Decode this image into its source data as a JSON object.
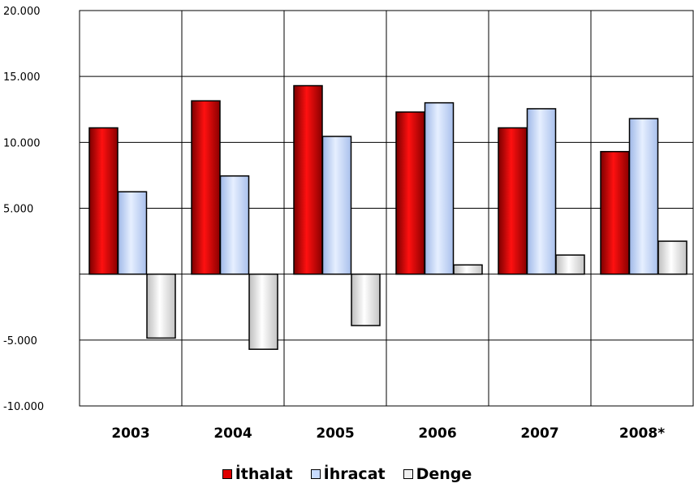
{
  "chart_data": {
    "type": "bar",
    "categories": [
      "2003",
      "2004",
      "2005",
      "2006",
      "2007",
      "2008*"
    ],
    "series": [
      {
        "name": "İthalat",
        "values": [
          11100,
          13150,
          14300,
          12300,
          11100,
          9300
        ],
        "color": "#e00000"
      },
      {
        "name": "İhracat",
        "values": [
          6250,
          7450,
          10450,
          13000,
          12550,
          11800
        ],
        "color": "#c8dcff"
      },
      {
        "name": "Denge",
        "values": [
          -4850,
          -5700,
          -3900,
          700,
          1450,
          2500
        ],
        "color": "#f0f0f0"
      }
    ],
    "ylim": [
      -10000,
      20000
    ],
    "yticks": [
      {
        "value": 20000,
        "label": "20.000"
      },
      {
        "value": 15000,
        "label": "15.000"
      },
      {
        "value": 10000,
        "label": "10.000"
      },
      {
        "value": 5000,
        "label": "5.000"
      },
      {
        "value": -5000,
        "label": "-5.000"
      },
      {
        "value": -10000,
        "label": "-10.000"
      }
    ],
    "grid": true,
    "legend_position": "bottom"
  }
}
